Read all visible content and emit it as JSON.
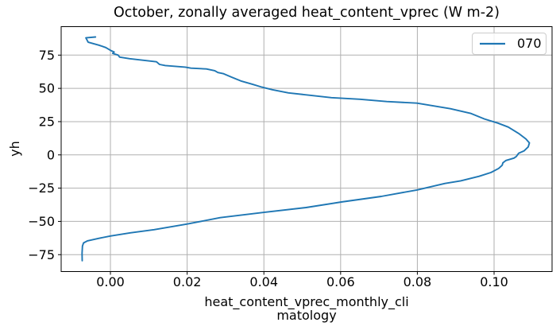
{
  "chart_data": {
    "type": "line",
    "title": "October, zonally averaged heat_content_vprec (W m-2)",
    "xlabel": "heat_content_vprec_monthly_climatology",
    "xlabel_lines": [
      "heat_content_vprec_monthly_cli",
      "matology"
    ],
    "ylabel": "yh",
    "xlim": [
      -0.01284,
      0.11511
    ],
    "ylim": [
      -87.7,
      96.4
    ],
    "grid": true,
    "legend": {
      "position": "upper right",
      "entries": [
        "070"
      ]
    },
    "x_ticks": {
      "values": [
        0.0,
        0.02,
        0.04,
        0.06,
        0.08,
        0.1
      ],
      "labels": [
        "0.00",
        "0.02",
        "0.04",
        "0.06",
        "0.08",
        "0.10"
      ]
    },
    "y_ticks": {
      "values": [
        75,
        50,
        25,
        0,
        -25,
        -50,
        -75
      ],
      "labels": [
        "75",
        "50",
        "25",
        "0",
        "−25",
        "−50",
        "−75"
      ]
    },
    "colors": {
      "line": "#1f77b4",
      "grid": "#b0b0b0",
      "spine": "#000000",
      "text": "#000000",
      "legend_border": "#cccccc"
    },
    "series": [
      {
        "name": "070",
        "color": "#1f77b4",
        "points": [
          [
            -0.0039,
            88.6
          ],
          [
            -0.0064,
            88.0
          ],
          [
            -0.0058,
            84.7
          ],
          [
            -0.003,
            82.5
          ],
          [
            -0.0012,
            80.7
          ],
          [
            0.0002,
            78.3
          ],
          [
            0.001,
            77.3
          ],
          [
            0.0006,
            76.3
          ],
          [
            0.002,
            75.0
          ],
          [
            0.0024,
            73.5
          ],
          [
            0.005,
            72.3
          ],
          [
            0.012,
            70.0
          ],
          [
            0.0128,
            68.0
          ],
          [
            0.0143,
            67.2
          ],
          [
            0.0195,
            66.0
          ],
          [
            0.021,
            65.2
          ],
          [
            0.025,
            64.6
          ],
          [
            0.0272,
            63.3
          ],
          [
            0.028,
            61.9
          ],
          [
            0.0295,
            61.0
          ],
          [
            0.0315,
            58.5
          ],
          [
            0.034,
            55.6
          ],
          [
            0.037,
            53.1
          ],
          [
            0.0395,
            50.9
          ],
          [
            0.0422,
            49.0
          ],
          [
            0.0464,
            46.6
          ],
          [
            0.052,
            44.8
          ],
          [
            0.0576,
            43.0
          ],
          [
            0.065,
            41.8
          ],
          [
            0.072,
            40.1
          ],
          [
            0.0799,
            38.9
          ],
          [
            0.0886,
            34.7
          ],
          [
            0.094,
            31.1
          ],
          [
            0.0975,
            27.0
          ],
          [
            0.101,
            23.9
          ],
          [
            0.1037,
            20.9
          ],
          [
            0.1064,
            16.1
          ],
          [
            0.1083,
            12.0
          ],
          [
            0.1092,
            9.0
          ],
          [
            0.1089,
            6.0
          ],
          [
            0.1078,
            3.0
          ],
          [
            0.1064,
            1.2
          ],
          [
            0.1058,
            -1.2
          ],
          [
            0.1052,
            -2.4
          ],
          [
            0.1031,
            -4.2
          ],
          [
            0.1023,
            -6.0
          ],
          [
            0.1021,
            -7.8
          ],
          [
            0.1012,
            -10.2
          ],
          [
            0.0992,
            -13.2
          ],
          [
            0.0961,
            -16.1
          ],
          [
            0.0913,
            -19.5
          ],
          [
            0.0872,
            -21.5
          ],
          [
            0.0799,
            -26.4
          ],
          [
            0.0706,
            -31.2
          ],
          [
            0.0602,
            -35.4
          ],
          [
            0.051,
            -39.6
          ],
          [
            0.04,
            -43.2
          ],
          [
            0.0286,
            -47.2
          ],
          [
            0.0199,
            -52.0
          ],
          [
            0.0114,
            -56.2
          ],
          [
            0.0052,
            -58.6
          ],
          [
            0.0,
            -61.0
          ],
          [
            -0.0031,
            -62.8
          ],
          [
            -0.006,
            -64.6
          ],
          [
            -0.007,
            -66.2
          ],
          [
            -0.0073,
            -68.5
          ],
          [
            -0.0074,
            -74.0
          ],
          [
            -0.00735,
            -79.5
          ]
        ]
      }
    ]
  }
}
